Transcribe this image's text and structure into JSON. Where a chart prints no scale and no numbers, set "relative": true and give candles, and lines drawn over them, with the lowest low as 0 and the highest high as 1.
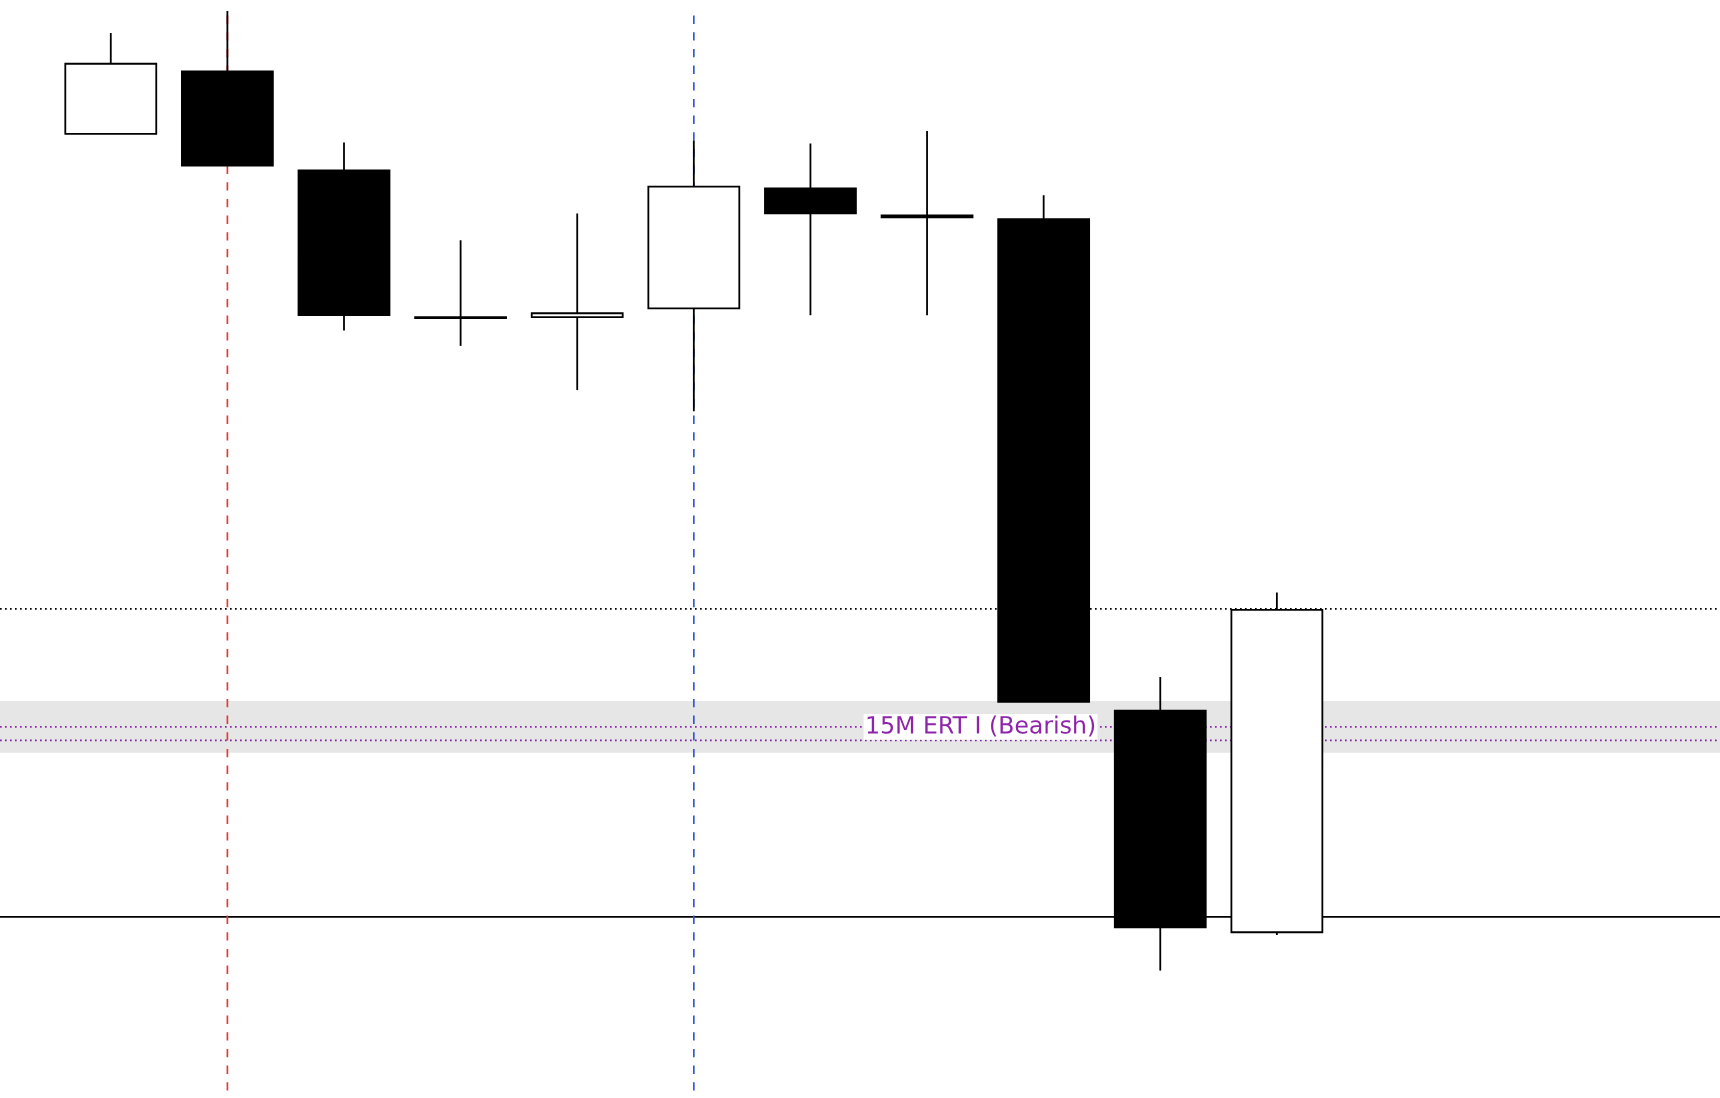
{
  "chart_data": {
    "type": "candlestick",
    "relative": true,
    "categories": [
      null,
      null,
      null,
      null,
      null,
      null,
      null,
      null,
      null,
      null,
      null
    ],
    "ohlc": [
      [
        0.872,
        0.977,
        0.872,
        0.945
      ],
      [
        0.937,
        1,
        0.839,
        0.839
      ],
      [
        0.834,
        0.863,
        0.667,
        0.683
      ],
      [
        0.681,
        0.761,
        0.651,
        0.68
      ],
      [
        0.681,
        0.789,
        0.605,
        0.685
      ],
      [
        0.69,
        0.865,
        0.583,
        0.817
      ],
      [
        0.815,
        0.862,
        0.683,
        0.789
      ],
      [
        0.787,
        0.875,
        0.683,
        0.785
      ],
      [
        0.783,
        0.808,
        0.28,
        0.28
      ],
      [
        0.271,
        0.306,
        0,
        0.045
      ],
      [
        0.04,
        0.394,
        0.037,
        0.376
      ]
    ],
    "ref_lines": [
      {
        "axis": "y",
        "value": 0.377,
        "color": "#000000",
        "line_style": "dotted"
      },
      {
        "axis": "y",
        "value": 0.056,
        "color": "#000000",
        "line_style": "solid"
      },
      {
        "axis": "y",
        "value": 0.254,
        "color": "#8e24aa",
        "line_style": "dotted",
        "label": "15M ERT I (Bearish)"
      },
      {
        "axis": "y",
        "value": 0.24,
        "color": "#7b1fa2",
        "line_style": "dotted"
      }
    ],
    "bands": [
      {
        "axis": "y",
        "from": 0.227,
        "to": 0.281,
        "color": "#e6e6e6"
      }
    ],
    "grid": false
  }
}
